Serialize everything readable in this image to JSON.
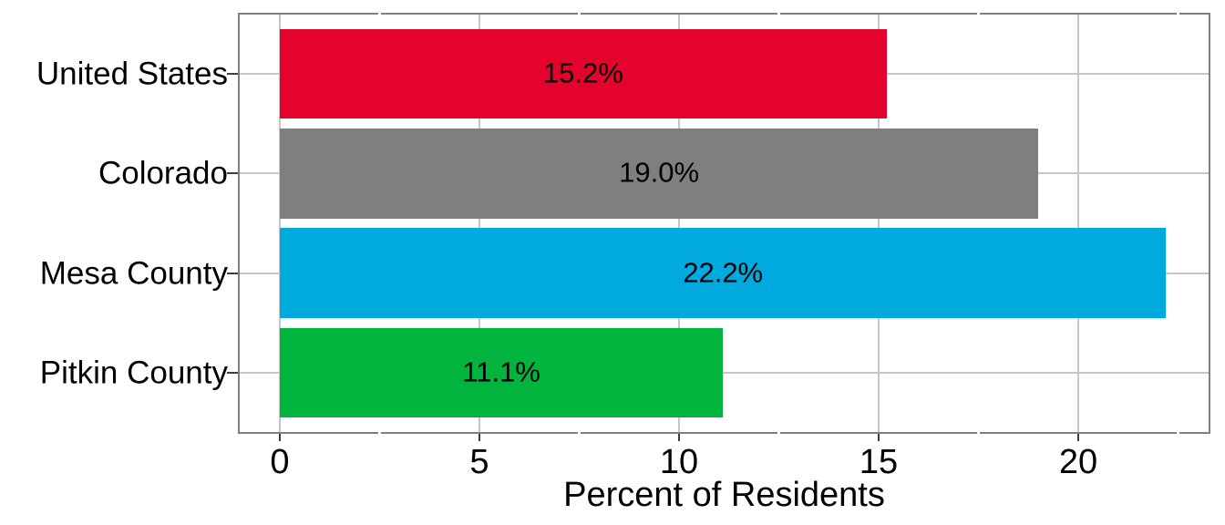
{
  "chart_data": {
    "type": "bar",
    "orientation": "horizontal",
    "title": "",
    "xlabel": "Percent of Residents",
    "ylabel": "",
    "categories": [
      "United States",
      "Colorado",
      "Mesa County",
      "Pitkin County"
    ],
    "values": [
      15.2,
      19.0,
      22.2,
      11.1
    ],
    "value_labels": [
      "15.2%",
      "19.0%",
      "22.2%",
      "11.1%"
    ],
    "bar_colors": [
      "#e4032d",
      "#7f7f7f",
      "#00aadf",
      "#00b43e"
    ],
    "xlim": [
      -1.11,
      23.31
    ],
    "x_major_ticks": [
      0,
      5,
      10,
      15,
      20
    ],
    "x_tick_labels": [
      "0",
      "5",
      "10",
      "15",
      "20"
    ],
    "x_minor_ticks": [
      2.5,
      7.5,
      12.5,
      17.5,
      22.5
    ],
    "grid": "vertical major gridlines + horizontal category gridlines, drawn behind bars",
    "legend_position": "none",
    "colors": {
      "panel_border": "#808080",
      "gridline": "#c6c6c6",
      "axis_tick": "#3d3d3d",
      "text": "#000000",
      "background": "#ffffff"
    }
  }
}
